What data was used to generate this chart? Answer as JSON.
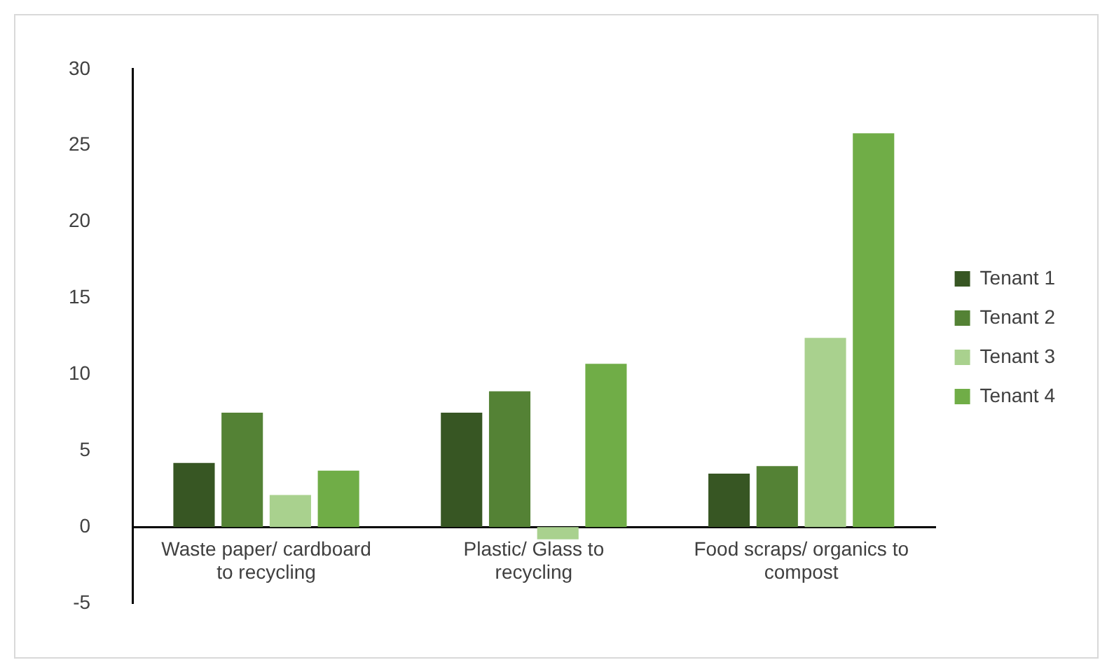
{
  "chart_data": {
    "type": "bar",
    "categories": [
      "Waste paper/ cardboard to recycling",
      "Plastic/ Glass to recycling",
      "Food scraps/ organics to compost"
    ],
    "series": [
      {
        "name": "Tenant 1",
        "color": "#375623",
        "values": [
          4.2,
          7.5,
          3.5
        ]
      },
      {
        "name": "Tenant 2",
        "color": "#548235",
        "values": [
          7.5,
          8.9,
          4.0
        ]
      },
      {
        "name": "Tenant 3",
        "color": "#a9d18e",
        "values": [
          2.1,
          -0.8,
          12.4
        ]
      },
      {
        "name": "Tenant 4",
        "color": "#70ad47",
        "values": [
          3.7,
          10.7,
          25.8
        ]
      }
    ],
    "ylim": [
      -5,
      30
    ],
    "yticks": [
      -5,
      0,
      5,
      10,
      15,
      20,
      25,
      30
    ],
    "grid": false,
    "legend": "right"
  }
}
